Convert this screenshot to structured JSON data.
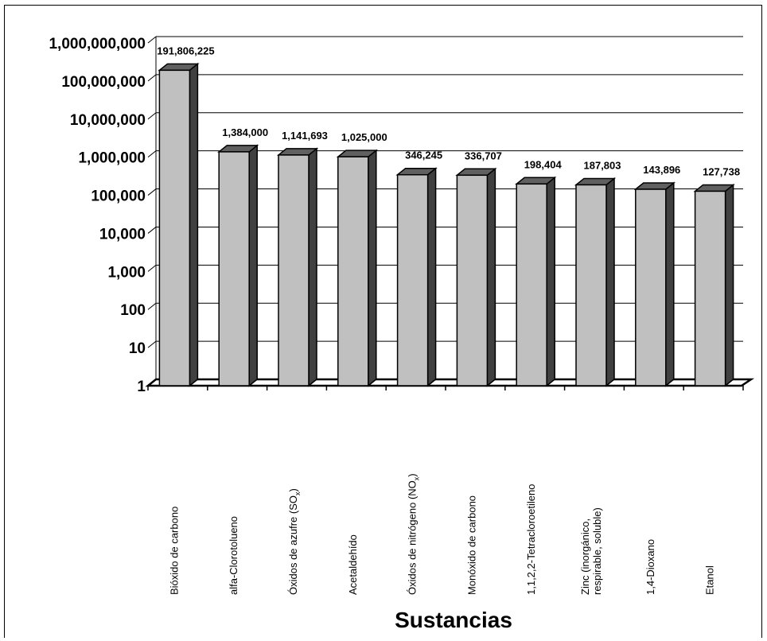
{
  "chart_data": {
    "type": "bar",
    "title": "",
    "xlabel": "Sustancias",
    "ylabel": "",
    "yscale": "log",
    "ylim": [
      1,
      1000000000
    ],
    "grid": true,
    "three_d": true,
    "colors": {
      "bar_front": "#c0c0c0",
      "bar_side": "#404040",
      "bar_top": "#606060",
      "grid": "#000000"
    },
    "y_ticks": [
      {
        "value": 1,
        "label": "1"
      },
      {
        "value": 10,
        "label": "10"
      },
      {
        "value": 100,
        "label": "100"
      },
      {
        "value": 1000,
        "label": "1,000"
      },
      {
        "value": 10000,
        "label": "10,000"
      },
      {
        "value": 100000,
        "label": "100,000"
      },
      {
        "value": 1000000,
        "label": "1,000,000"
      },
      {
        "value": 10000000,
        "label": "10,000,000"
      },
      {
        "value": 100000000,
        "label": "100,000,000"
      },
      {
        "value": 1000000000,
        "label": "1,000,000,000"
      }
    ],
    "categories": [
      {
        "label": [
          "Bióxido de carbono"
        ]
      },
      {
        "label": [
          "alfa-Clorotolueno"
        ]
      },
      {
        "label": [
          "Óxidos de azufre (SO",
          "x",
          ")"
        ]
      },
      {
        "label": [
          "Acetaldehído"
        ]
      },
      {
        "label": [
          "Óxidos de nitrógeno (NO",
          "x",
          ")"
        ]
      },
      {
        "label": [
          "Monóxido de carbono"
        ]
      },
      {
        "label": [
          "1,1,2,2-Tetracloroetileno"
        ]
      },
      {
        "label": [
          "Zinc (inorgánico,",
          "respirable, soluble)"
        ]
      },
      {
        "label": [
          "1,4-Dioxano"
        ]
      },
      {
        "label": [
          "Etanol"
        ]
      }
    ],
    "values": [
      191806225,
      1384000,
      1141693,
      1025000,
      346245,
      336707,
      198404,
      187803,
      143896,
      127738
    ],
    "data_labels": [
      "191,806,225",
      "1,384,000",
      "1,141,693",
      "1,025,000",
      "346,245",
      "336,707",
      "198,404",
      "187,803",
      "143,896",
      "127,738"
    ]
  }
}
